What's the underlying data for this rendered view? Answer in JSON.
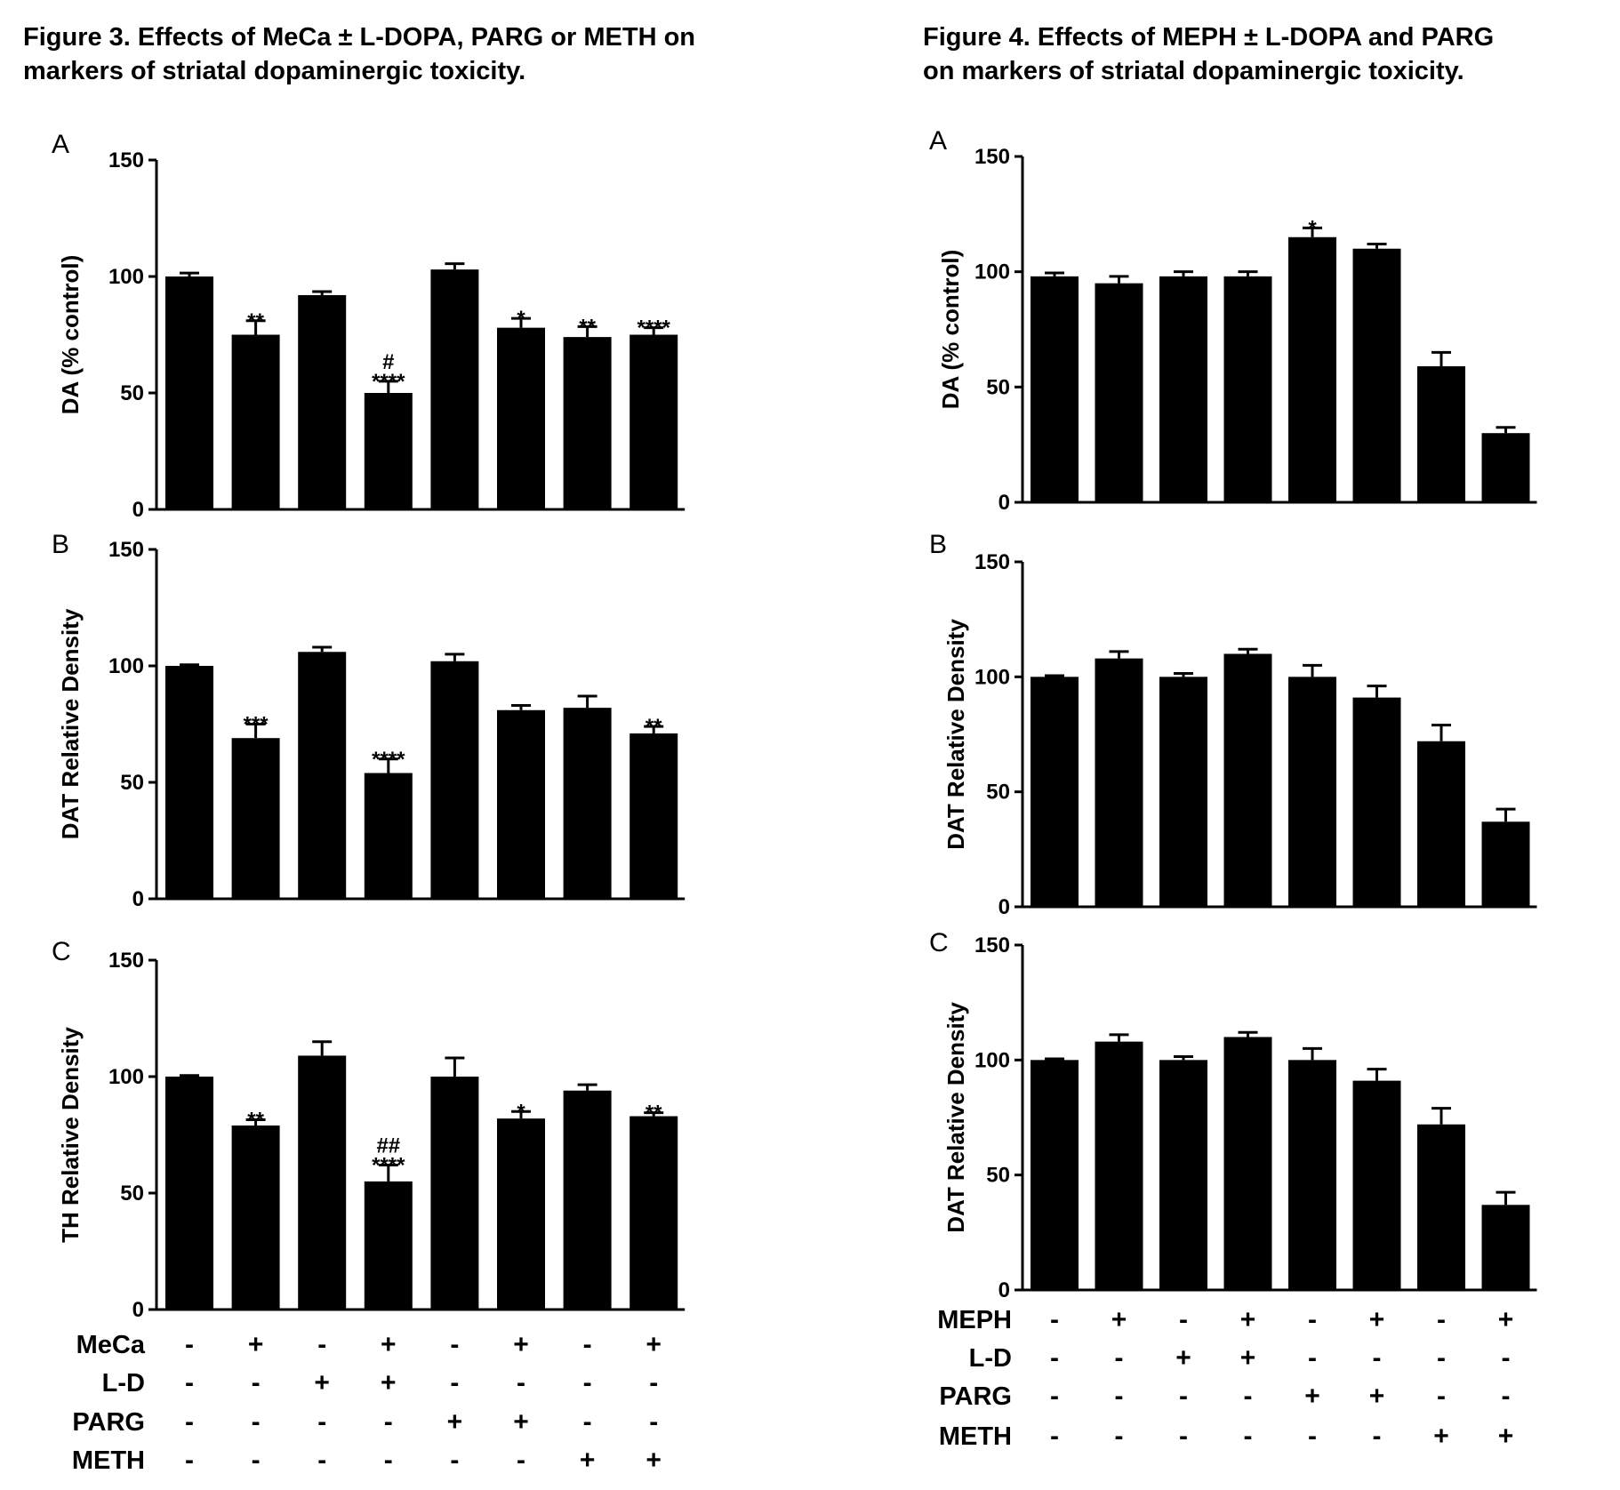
{
  "figures": [
    {
      "id": "fig3",
      "title": "Figure 3. Effects of MeCa ± L-DOPA, PARG or METH on\nmarkers of striatal dopaminergic toxicity.",
      "treatment_rows": [
        {
          "label": "MeCa",
          "signs": [
            "-",
            "+",
            "-",
            "+",
            "-",
            "+",
            "-",
            "+"
          ]
        },
        {
          "label": "L-D",
          "signs": [
            "-",
            "-",
            "+",
            "+",
            "-",
            "-",
            "-",
            "-"
          ]
        },
        {
          "label": "PARG",
          "signs": [
            "-",
            "-",
            "-",
            "-",
            "+",
            "+",
            "-",
            "-"
          ]
        },
        {
          "label": "METH",
          "signs": [
            "-",
            "-",
            "-",
            "-",
            "-",
            "-",
            "+",
            "+"
          ]
        }
      ]
    },
    {
      "id": "fig4",
      "title": "Figure 4. Effects of MEPH ± L-DOPA and PARG\non markers of striatal dopaminergic toxicity.",
      "treatment_rows": [
        {
          "label": "MEPH",
          "signs": [
            "-",
            "+",
            "-",
            "+",
            "-",
            "+",
            "-",
            "+"
          ]
        },
        {
          "label": "L-D",
          "signs": [
            "-",
            "-",
            "+",
            "+",
            "-",
            "-",
            "-",
            "-"
          ]
        },
        {
          "label": "PARG",
          "signs": [
            "-",
            "-",
            "-",
            "-",
            "+",
            "+",
            "-",
            "-"
          ]
        },
        {
          "label": "METH",
          "signs": [
            "-",
            "-",
            "-",
            "-",
            "-",
            "-",
            "+",
            "+"
          ]
        }
      ]
    }
  ],
  "chart_data": [
    {
      "figure": "fig3",
      "panel": "A",
      "type": "bar",
      "ylabel": "DA (% control)",
      "ylim": [
        0,
        150
      ],
      "yticks": [
        0,
        50,
        100,
        150
      ],
      "values": [
        100,
        75,
        92,
        50,
        103,
        78,
        74,
        75
      ],
      "errors": [
        1.5,
        6,
        1.5,
        5,
        2.5,
        4,
        4.5,
        3
      ],
      "annotations": [
        "",
        "**",
        "",
        "#\n****",
        "",
        "*",
        "**",
        "****"
      ]
    },
    {
      "figure": "fig3",
      "panel": "B",
      "type": "bar",
      "ylabel": "DAT Relative Density",
      "ylim": [
        0,
        150
      ],
      "yticks": [
        0,
        50,
        100,
        150
      ],
      "values": [
        100,
        69,
        106,
        54,
        102,
        81,
        82,
        71
      ],
      "errors": [
        0.5,
        6,
        2,
        6,
        3,
        2,
        5,
        3
      ],
      "annotations": [
        "",
        "***",
        "",
        "****",
        "",
        "",
        "",
        "**"
      ]
    },
    {
      "figure": "fig3",
      "panel": "C",
      "type": "bar",
      "ylabel": "TH Relative Density",
      "ylim": [
        0,
        150
      ],
      "yticks": [
        0,
        50,
        100,
        150
      ],
      "values": [
        100,
        79,
        109,
        55,
        100,
        82,
        94,
        83
      ],
      "errors": [
        0.5,
        2.5,
        6,
        7,
        8,
        3,
        2.5,
        1.5
      ],
      "annotations": [
        "",
        "**",
        "",
        "##\n****",
        "",
        "*",
        "",
        "**"
      ]
    },
    {
      "figure": "fig4",
      "panel": "A",
      "type": "bar",
      "ylabel": "DA (% control)",
      "ylim": [
        0,
        150
      ],
      "yticks": [
        0,
        50,
        100,
        150
      ],
      "values": [
        98,
        95,
        98,
        98,
        115,
        110,
        59,
        30
      ],
      "errors": [
        1.5,
        3,
        2,
        2,
        4,
        2,
        6,
        2.5
      ],
      "annotations": [
        "",
        "",
        "",
        "",
        "*",
        "",
        "",
        ""
      ]
    },
    {
      "figure": "fig4",
      "panel": "B",
      "type": "bar",
      "ylabel": "DAT Relative Density",
      "ylim": [
        0,
        150
      ],
      "yticks": [
        0,
        50,
        100,
        150
      ],
      "values": [
        100,
        108,
        100,
        110,
        100,
        91,
        72,
        37
      ],
      "errors": [
        0.5,
        3,
        1.5,
        2,
        5,
        5,
        7,
        5.5
      ],
      "annotations": [
        "",
        "",
        "",
        "",
        "",
        "",
        "",
        ""
      ]
    },
    {
      "figure": "fig4",
      "panel": "C",
      "type": "bar",
      "ylabel": "DAT Relative Density",
      "ylim": [
        0,
        150
      ],
      "yticks": [
        0,
        50,
        100,
        150
      ],
      "values": [
        100,
        108,
        100,
        110,
        100,
        91,
        72,
        37
      ],
      "errors": [
        0.5,
        3,
        1.5,
        2,
        5,
        5,
        7,
        5.5
      ],
      "annotations": [
        "",
        "",
        "",
        "",
        "",
        "",
        "",
        ""
      ]
    }
  ]
}
